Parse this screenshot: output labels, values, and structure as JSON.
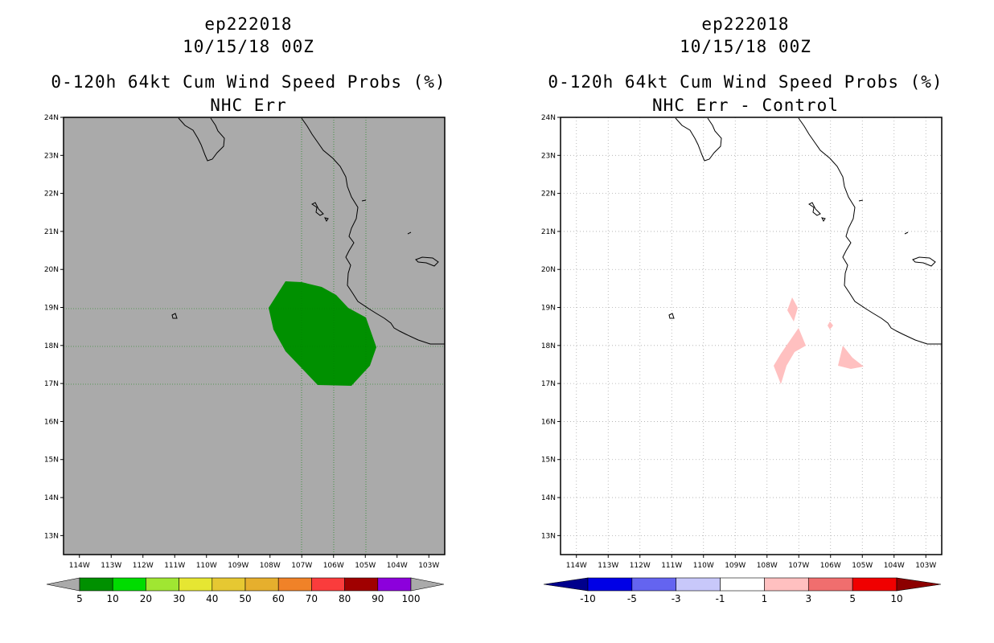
{
  "colors": {
    "land_background": "#aaaaaa",
    "prob_fill": "#009000",
    "diff_fill": "#ffc0c0",
    "coastline": "#000000",
    "grid": "#aaaaaa"
  },
  "left_panel": {
    "title_storm": "ep222018",
    "title_date": "10/15/18 00Z",
    "title_product": "0-120h 64kt Cum Wind Speed Probs (%)",
    "title_sub": "NHC Err",
    "lat_labels": [
      "24N",
      "23N",
      "22N",
      "21N",
      "20N",
      "19N",
      "18N",
      "17N",
      "16N",
      "15N",
      "14N",
      "13N"
    ],
    "lon_labels": [
      "114W",
      "113W",
      "112W",
      "111W",
      "110W",
      "109W",
      "108W",
      "107W",
      "106W",
      "105W",
      "104W",
      "103W"
    ],
    "colorbar": {
      "labels": [
        "5",
        "10",
        "20",
        "30",
        "40",
        "50",
        "60",
        "70",
        "80",
        "90",
        "100"
      ],
      "colors": [
        "#aaaaaa",
        "#009000",
        "#00dc00",
        "#a0e632",
        "#e6e632",
        "#e6c832",
        "#e6af2d",
        "#f08228",
        "#fa3c3c",
        "#a00000",
        "#8c00dc",
        "#aaaaaa"
      ]
    }
  },
  "right_panel": {
    "title_storm": "ep222018",
    "title_date": "10/15/18 00Z",
    "title_product": "0-120h 64kt Cum Wind Speed Probs (%)",
    "title_sub": "NHC Err - Control",
    "lat_labels": [
      "24N",
      "23N",
      "22N",
      "21N",
      "20N",
      "19N",
      "18N",
      "17N",
      "16N",
      "15N",
      "14N",
      "13N"
    ],
    "lon_labels": [
      "114W",
      "113W",
      "112W",
      "111W",
      "110W",
      "109W",
      "108W",
      "107W",
      "106W",
      "105W",
      "104W",
      "103W"
    ],
    "colorbar": {
      "labels": [
        "-10",
        "-5",
        "-3",
        "-1",
        "1",
        "3",
        "5",
        "10"
      ],
      "colors": [
        "#00008c",
        "#0000e6",
        "#6464f0",
        "#c8c8fa",
        "#ffffff",
        "#ffc0c0",
        "#f06e6e",
        "#f00000",
        "#8c0000"
      ]
    }
  }
}
